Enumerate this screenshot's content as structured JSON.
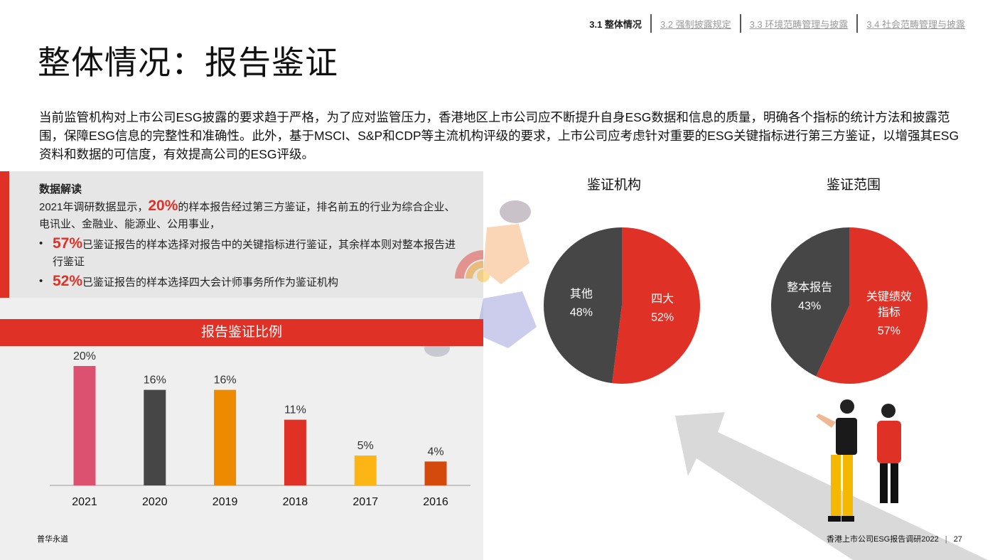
{
  "nav": {
    "tabs": [
      {
        "label": "3.1 整体情况"
      },
      {
        "label": "3.2 强制披露规定"
      },
      {
        "label": "3.3 环境范畴管理与披露"
      },
      {
        "label": "3.4 社会范畴管理与披露"
      }
    ]
  },
  "title": "整体情况：报告鉴证",
  "intro": "当前监管机构对上市公司ESG披露的要求趋于严格，为了应对监管压力，香港地区上市公司应不断提升自身ESG数据和信息的质量，明确各个指标的统计方法和披露范围，保障ESG信息的完整性和准确性。此外，基于MSCI、S&P和CDP等主流机构评级的要求，上市公司应考虑针对重要的ESG关键指标进行第三方鉴证，以增强其ESG资料和数据的可信度，有效提高公司的ESG评级。",
  "reading": {
    "title": "数据解读",
    "p1_pre": "2021年调研数据显示，",
    "p1_hl": "20%",
    "p1_post": "的样本报告经过第三方鉴证，排名前五的行业为综合企业、电讯业、金融业、能源业、公用事业，",
    "b1_hl": "57%",
    "b1_text": "已鉴证报告的样本选择对报告中的关键指标进行鉴证，其余样本则对整本报告进行鉴证",
    "b2_hl": "52%",
    "b2_text": "已鉴证报告的样本选择四大会计师事务所作为鉴证机构",
    "bullet": "•"
  },
  "colors": {
    "red": "#e03127",
    "dark": "#464646",
    "pink": "#dc5070",
    "orange": "#ee8a00",
    "yellow": "#fdb515",
    "deeporange": "#d44a0d"
  },
  "chart_data": [
    {
      "type": "bar",
      "title": "报告鉴证比例",
      "categories": [
        "2021",
        "2020",
        "2019",
        "2018",
        "2017",
        "2016"
      ],
      "values": [
        20,
        16,
        16,
        11,
        5,
        4
      ],
      "labels": [
        "20%",
        "16%",
        "16%",
        "11%",
        "5%",
        "4%"
      ],
      "colors": [
        "#dc5070",
        "#464646",
        "#ee8a00",
        "#e03127",
        "#fdb515",
        "#d44a0d"
      ],
      "ylim": [
        0,
        20
      ]
    },
    {
      "type": "pie",
      "title": "鉴证机构",
      "slices": [
        {
          "label": "四大",
          "value": 52,
          "value_label": "52%",
          "color": "#e03127"
        },
        {
          "label": "其他",
          "value": 48,
          "value_label": "48%",
          "color": "#464646"
        }
      ]
    },
    {
      "type": "pie",
      "title": "鉴证范围",
      "slices": [
        {
          "label": "关键绩效指标",
          "label_lines": [
            "关键绩效",
            "指标"
          ],
          "value": 57,
          "value_label": "57%",
          "color": "#e03127"
        },
        {
          "label": "整本报告",
          "value": 43,
          "value_label": "43%",
          "color": "#464646"
        }
      ]
    }
  ],
  "footer": {
    "left": "普华永道",
    "right": "香港上市公司ESG报告调研2022",
    "divider": "|",
    "page": "27"
  }
}
